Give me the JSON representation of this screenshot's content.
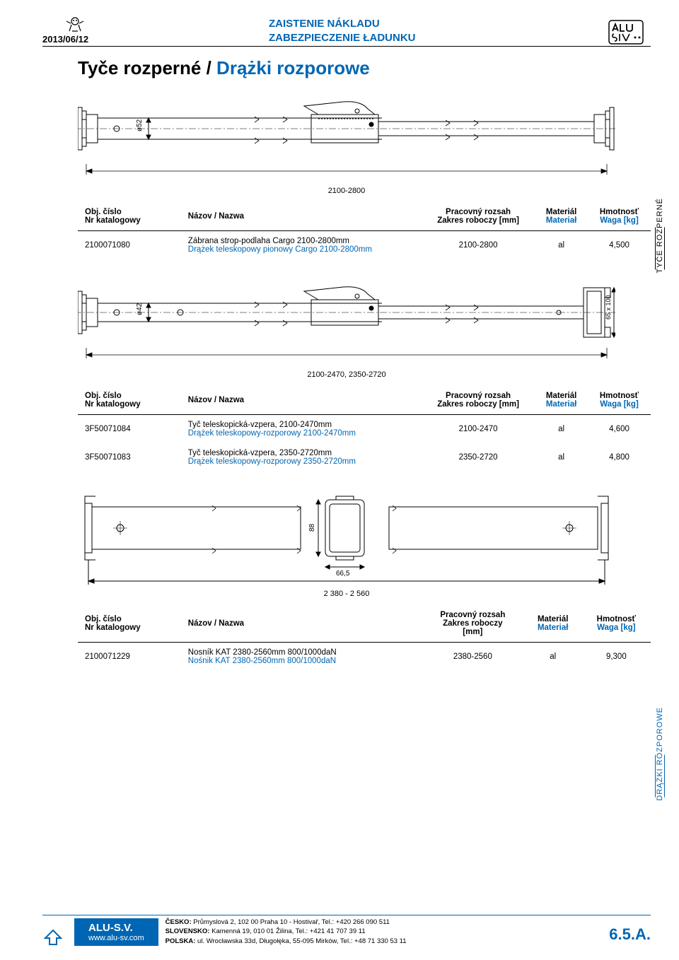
{
  "header": {
    "date": "2013/06/12",
    "title_sk": "ZAISTENIE NÁKLADU",
    "title_pl": "ZABEZPIECZENIE ŁADUNKU"
  },
  "main_title_sk": "Tyče rozperné /",
  "main_title_pl": "Drążki rozporowe",
  "side_label_sk": "TYČE ROZPERNÉ",
  "side_label_pl": "DRĄŻKI ROZPOROWE",
  "diagram1": {
    "dia": "ø52",
    "range": "2100-2800"
  },
  "diagram2": {
    "dia": "ø42",
    "end": "65 x 100",
    "range": "2100-2470, 2350-2720"
  },
  "diagram3": {
    "h": "88",
    "w": "66,5",
    "range": "2 380 - 2 560"
  },
  "table_headers": {
    "col1_sk": "Obj. číslo",
    "col1_pl": "Nr katalogowy",
    "col2": "Názov / Nazwa",
    "col3_sk": "Pracovný rozsah",
    "col3_pl": "Zakres roboczy [mm]",
    "col3_pl_short": "Zakres roboczy",
    "col3_unit": "[mm]",
    "col4_sk": "Materiál",
    "col4_pl": "Materiał",
    "col5_sk": "Hmotnosť",
    "col5_pl": "Waga [kg]"
  },
  "table1": {
    "rows": [
      {
        "code": "2100071080",
        "name_sk": "Zábrana strop-podlaha Cargo 2100-2800mm",
        "name_pl": "Drążek teleskopowy pionowy Cargo 2100-2800mm",
        "range": "2100-2800",
        "material": "al",
        "weight": "4,500"
      }
    ]
  },
  "table2": {
    "rows": [
      {
        "code": "3F50071084",
        "name_sk": "Tyč teleskopická-vzpera, 2100-2470mm",
        "name_pl": "Drążek teleskopowy-rozporowy 2100-2470mm",
        "range": "2100-2470",
        "material": "al",
        "weight": "4,600"
      },
      {
        "code": "3F50071083",
        "name_sk": "Tyč teleskopická-vzpera, 2350-2720mm",
        "name_pl": "Drążek teleskopowy-rozporowy 2350-2720mm",
        "range": "2350-2720",
        "material": "al",
        "weight": "4,800"
      }
    ]
  },
  "table3": {
    "rows": [
      {
        "code": "2100071229",
        "name_sk": "Nosník KAT 2380-2560mm 800/1000daN",
        "name_pl": "Nośnik KAT 2380-2560mm 800/1000daN",
        "range": "2380-2560",
        "material": "al",
        "weight": "9,300"
      }
    ]
  },
  "footer": {
    "company": "ALU-S.V.",
    "website": "www.alu-sv.com",
    "contacts": [
      {
        "country": "ČESKO:",
        "text": " Průmyslová 2, 102 00 Praha 10 - Hostivař, Tel.: +420 266 090 511"
      },
      {
        "country": "SLOVENSKO:",
        "text": " Kamenná 19, 010 01 Žilina,  Tel.: +421 41 707 39 11"
      },
      {
        "country": "POLSKA:",
        "text": " ul. Wrocławska 33d, Długołęka, 55-095 Mirków, Tel.: +48 71 330 53 11"
      }
    ],
    "page_number": "6.5.A."
  },
  "colors": {
    "blue": "#0066b3",
    "black": "#000000"
  }
}
